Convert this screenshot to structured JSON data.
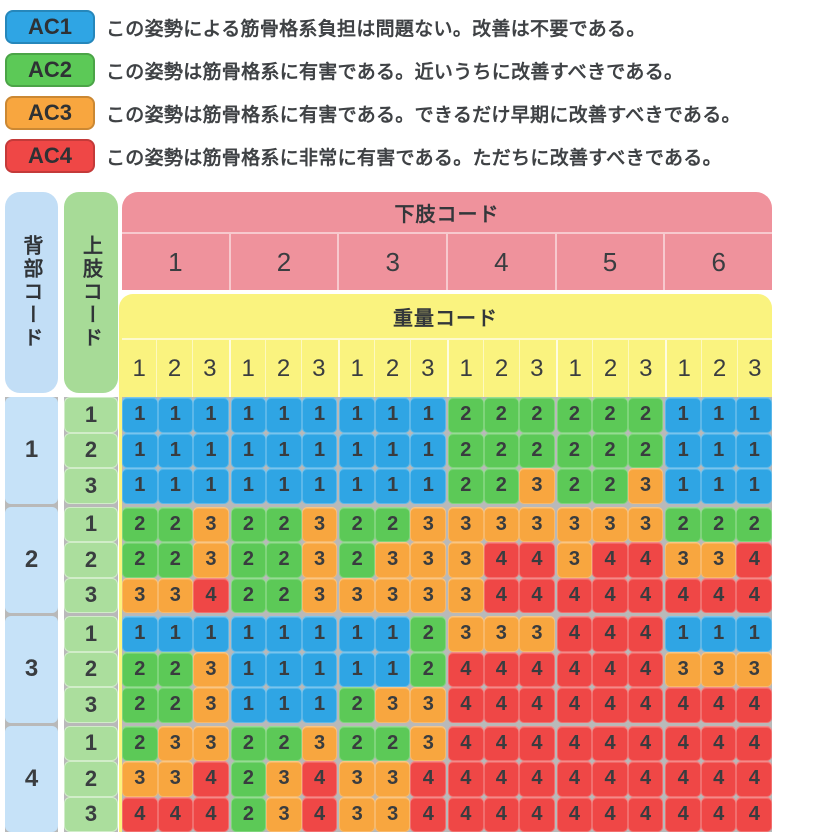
{
  "legend": [
    {
      "code": "AC1",
      "color": "#2fa5e4",
      "text": "この姿勢による筋骨格系負担は問題ない。改善は不要である。"
    },
    {
      "code": "AC2",
      "color": "#5cc957",
      "text": "この姿勢は筋骨格系に有害である。近いうちに改善すべきである。"
    },
    {
      "code": "AC3",
      "color": "#f8a63f",
      "text": "この姿勢は筋骨格系に有害である。できるだけ早期に改善すべきである。"
    },
    {
      "code": "AC4",
      "color": "#ef4746",
      "text": "この姿勢は筋骨格系に非常に有害である。ただちに改善すべきである。"
    }
  ],
  "table": {
    "back_header": "背部コード",
    "arm_header": "上肢コード",
    "leg_header": "下肢コード",
    "weight_header": "重量コード",
    "leg_codes": [
      "1",
      "2",
      "3",
      "4",
      "5",
      "6"
    ],
    "weight_codes": [
      "1",
      "2",
      "3"
    ],
    "back_codes": [
      "1",
      "2",
      "3",
      "4"
    ],
    "arm_codes": [
      "1",
      "2",
      "3"
    ]
  },
  "colors": {
    "ac1": "#2fa5e4",
    "ac2": "#5cc957",
    "ac3": "#f8a63f",
    "ac4": "#ef4746",
    "back_column": "#c6e2f8",
    "arm_column": "#abde9d",
    "leg_band": "#ef929c",
    "weight_band": "#faf37f",
    "separator": "#b9b9b9",
    "text": "#3a3d40"
  },
  "chart_data": {
    "type": "heatmap",
    "row_axis": {
      "back_codes": [
        1,
        2,
        3,
        4
      ],
      "arm_codes_per_back": [
        1,
        2,
        3
      ]
    },
    "col_axis": {
      "leg_codes": [
        1,
        2,
        3,
        4,
        5,
        6
      ],
      "weight_codes_per_leg": [
        1,
        2,
        3
      ]
    },
    "legend_categories": [
      "AC1",
      "AC2",
      "AC3",
      "AC4"
    ],
    "values": [
      [
        1,
        1,
        1,
        1,
        1,
        1,
        1,
        1,
        1,
        2,
        2,
        2,
        2,
        2,
        2,
        1,
        1,
        1
      ],
      [
        1,
        1,
        1,
        1,
        1,
        1,
        1,
        1,
        1,
        2,
        2,
        2,
        2,
        2,
        2,
        1,
        1,
        1
      ],
      [
        1,
        1,
        1,
        1,
        1,
        1,
        1,
        1,
        1,
        2,
        2,
        3,
        2,
        2,
        3,
        1,
        1,
        1
      ],
      [
        2,
        2,
        3,
        2,
        2,
        3,
        2,
        2,
        3,
        3,
        3,
        3,
        3,
        3,
        3,
        2,
        2,
        2
      ],
      [
        2,
        2,
        3,
        2,
        2,
        3,
        2,
        3,
        3,
        3,
        4,
        4,
        3,
        4,
        4,
        3,
        3,
        4
      ],
      [
        3,
        3,
        4,
        2,
        2,
        3,
        3,
        3,
        3,
        3,
        4,
        4,
        4,
        4,
        4,
        4,
        4,
        4
      ],
      [
        1,
        1,
        1,
        1,
        1,
        1,
        1,
        1,
        2,
        3,
        3,
        3,
        4,
        4,
        4,
        1,
        1,
        1
      ],
      [
        2,
        2,
        3,
        1,
        1,
        1,
        1,
        1,
        2,
        4,
        4,
        4,
        4,
        4,
        4,
        3,
        3,
        3
      ],
      [
        2,
        2,
        3,
        1,
        1,
        1,
        2,
        3,
        3,
        4,
        4,
        4,
        4,
        4,
        4,
        4,
        4,
        4
      ],
      [
        2,
        3,
        3,
        2,
        2,
        3,
        2,
        2,
        3,
        4,
        4,
        4,
        4,
        4,
        4,
        4,
        4,
        4
      ],
      [
        3,
        3,
        4,
        2,
        3,
        4,
        3,
        3,
        4,
        4,
        4,
        4,
        4,
        4,
        4,
        4,
        4,
        4
      ],
      [
        4,
        4,
        4,
        2,
        3,
        4,
        3,
        3,
        4,
        4,
        4,
        4,
        4,
        4,
        4,
        4,
        4,
        4
      ]
    ]
  }
}
